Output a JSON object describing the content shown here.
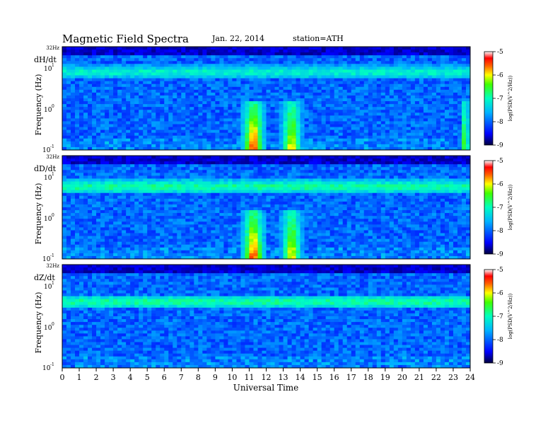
{
  "header": {
    "title": "Magnetic  Field  Spectra",
    "date": "Jan. 22, 2014",
    "station": "station=ATH"
  },
  "chart_data": {
    "type": "heatmap",
    "xlabel": "Universal Time",
    "x_ticks": [
      "0",
      "1",
      "2",
      "3",
      "4",
      "5",
      "6",
      "7",
      "8",
      "9",
      "10",
      "11",
      "12",
      "13",
      "14",
      "15",
      "16",
      "17",
      "18",
      "19",
      "20",
      "21",
      "22",
      "23",
      "24"
    ],
    "xlim": [
      0,
      24
    ],
    "colorbar": {
      "label": "log(PSD(V^2/Hz))",
      "ticks": [
        "-5",
        "-6",
        "-7",
        "-8",
        "-9"
      ],
      "range": [
        -9,
        -5
      ]
    },
    "panels": [
      {
        "name": "dH/dt",
        "ylabel": "Frequency (Hz)",
        "y_ticks": [
          "32Hz",
          "10",
          "10",
          "10"
        ],
        "y_tick_exponents": [
          "",
          "1",
          "0",
          "-1"
        ],
        "scale": "log",
        "features": [
          {
            "desc": "band",
            "f": 7,
            "t0": 0,
            "t1": 24,
            "level": -7.2
          },
          {
            "desc": "burst",
            "t0": 10.5,
            "t1": 12.0,
            "level": -5.2
          },
          {
            "desc": "burst",
            "t0": 12.8,
            "t1": 14.2,
            "level": -5.8
          },
          {
            "desc": "burst",
            "t0": 23.4,
            "t1": 24,
            "level": -6.2
          }
        ]
      },
      {
        "name": "dD/dt",
        "ylabel": "Frequency (Hz)",
        "y_ticks": [
          "32Hz",
          "10",
          "10",
          "10"
        ],
        "y_tick_exponents": [
          "",
          "1",
          "0",
          "-1"
        ],
        "scale": "log",
        "features": [
          {
            "desc": "band",
            "f": 5,
            "t0": 0,
            "t1": 24,
            "level": -7.0
          },
          {
            "desc": "burst",
            "t0": 10.5,
            "t1": 12.0,
            "level": -5.3
          },
          {
            "desc": "burst",
            "t0": 12.8,
            "t1": 14.2,
            "level": -5.8
          }
        ]
      },
      {
        "name": "dZ/dt",
        "ylabel": "Frequency (Hz)",
        "y_ticks": [
          "32Hz",
          "10",
          "10",
          "10"
        ],
        "y_tick_exponents": [
          "",
          "1",
          "0",
          "-1"
        ],
        "scale": "log",
        "features": [
          {
            "desc": "band",
            "f": 3.5,
            "t0": 0,
            "t1": 24,
            "level": -7.0
          }
        ]
      }
    ]
  }
}
